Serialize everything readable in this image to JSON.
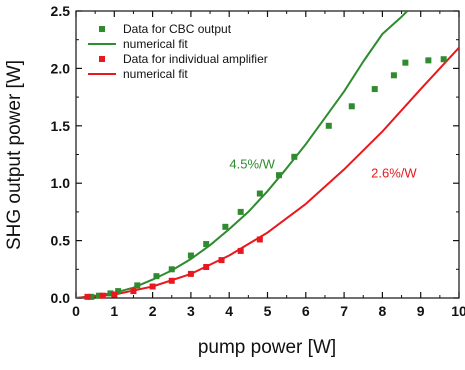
{
  "chart_data": {
    "type": "scatter",
    "xlabel": "pump power [W]",
    "ylabel": "SHG output power [W]",
    "xlim": [
      0,
      10
    ],
    "ylim": [
      0,
      2.5
    ],
    "xticks": [
      "0",
      "1",
      "2",
      "3",
      "4",
      "5",
      "6",
      "7",
      "8",
      "9",
      "10"
    ],
    "yticks": [
      "0.0",
      "0.5",
      "1.0",
      "1.5",
      "2.0",
      "2.5"
    ],
    "grid": false,
    "legend_position": "top-left",
    "series": [
      {
        "name": "Data for CBC output",
        "kind": "points",
        "color": "#2e8b2e",
        "x": [
          0.4,
          0.6,
          0.9,
          1.1,
          1.6,
          2.1,
          2.5,
          3.0,
          3.4,
          3.9,
          4.3,
          4.8,
          5.3,
          5.7,
          6.6,
          7.2,
          7.8,
          8.3,
          8.6,
          9.2,
          9.6
        ],
        "y": [
          0.01,
          0.02,
          0.04,
          0.06,
          0.11,
          0.19,
          0.25,
          0.37,
          0.47,
          0.62,
          0.75,
          0.91,
          1.07,
          1.23,
          1.5,
          1.67,
          1.82,
          1.94,
          2.05,
          2.07,
          2.08
        ]
      },
      {
        "name": "numerical fit",
        "kind": "line",
        "color": "#2e8b2e",
        "x": [
          0,
          0.5,
          1,
          1.5,
          2,
          2.5,
          3,
          3.5,
          4,
          4.5,
          5,
          5.5,
          6,
          6.5,
          7,
          7.5,
          8,
          8.5,
          8.65
        ],
        "y": [
          0,
          0.02,
          0.045,
          0.09,
          0.16,
          0.24,
          0.34,
          0.46,
          0.6,
          0.75,
          0.93,
          1.13,
          1.34,
          1.57,
          1.8,
          2.06,
          2.3,
          2.45,
          2.5
        ]
      },
      {
        "name": "Data for individual amplifier",
        "kind": "points",
        "color": "#e8191e",
        "x": [
          0.3,
          0.7,
          1.0,
          1.5,
          2.0,
          2.5,
          3.0,
          3.4,
          3.8,
          4.3,
          4.8
        ],
        "y": [
          0.01,
          0.02,
          0.03,
          0.06,
          0.1,
          0.15,
          0.21,
          0.27,
          0.33,
          0.41,
          0.51
        ]
      },
      {
        "name": "numerical fit",
        "kind": "line",
        "color": "#e8191e",
        "x": [
          0,
          1,
          2,
          3,
          4,
          5,
          6,
          7,
          8,
          9,
          10
        ],
        "y": [
          0,
          0.03,
          0.1,
          0.21,
          0.37,
          0.57,
          0.82,
          1.12,
          1.45,
          1.82,
          2.18
        ]
      }
    ],
    "annotations": [
      {
        "text": "4.5%/W",
        "x": 4.6,
        "y": 1.13,
        "color": "#2e8b2e"
      },
      {
        "text": "2.6%/W",
        "x": 8.3,
        "y": 1.05,
        "color": "#e8191e"
      }
    ]
  }
}
